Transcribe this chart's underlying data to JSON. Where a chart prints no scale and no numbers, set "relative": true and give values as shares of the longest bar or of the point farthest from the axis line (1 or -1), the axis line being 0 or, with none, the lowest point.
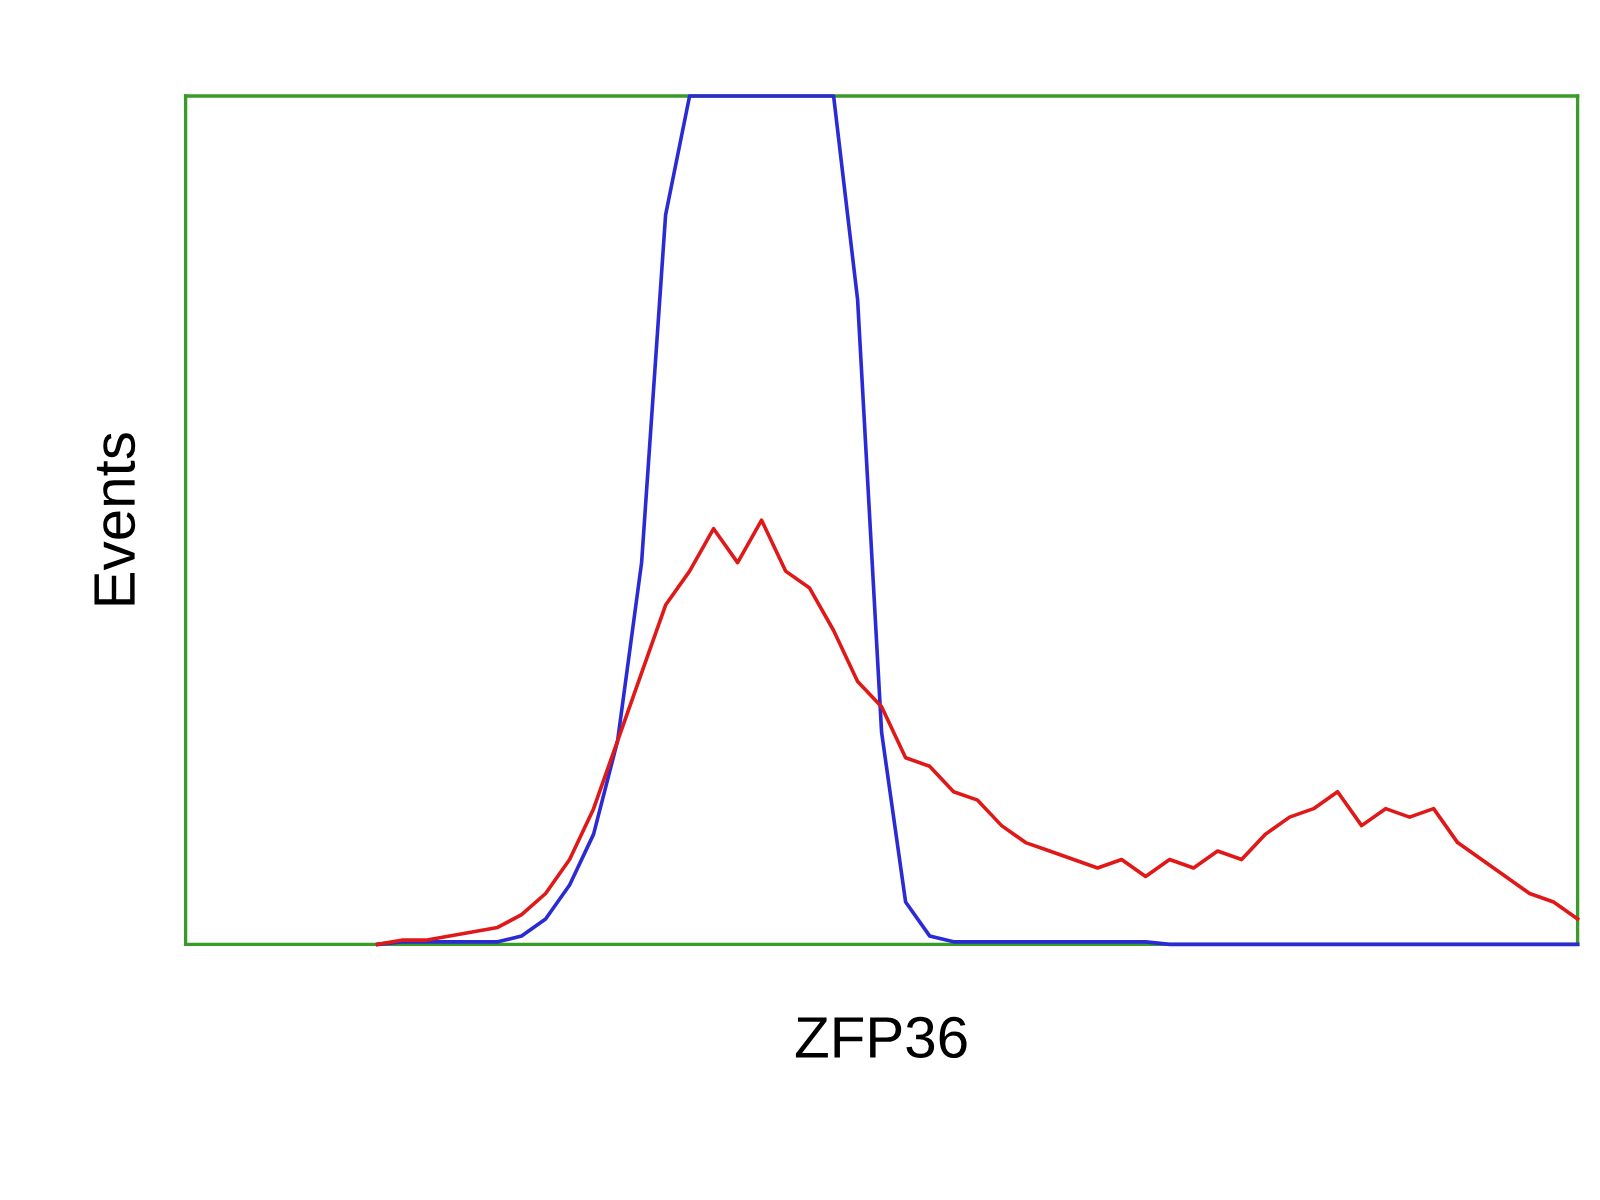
{
  "chart_data": {
    "type": "line",
    "relative": true,
    "xlabel": "ZFP36",
    "ylabel": "Events",
    "grid": false,
    "legend": false,
    "marker": "none",
    "line_style": "solid",
    "categories": [
      null,
      null,
      null,
      null,
      null,
      null,
      null,
      null,
      null,
      null,
      null,
      null,
      null,
      null,
      null,
      null,
      null,
      null,
      null,
      null,
      null,
      null,
      null,
      null,
      null,
      null,
      null,
      null,
      null,
      null,
      null,
      null,
      null,
      null,
      null,
      null,
      null,
      null,
      null,
      null,
      null,
      null,
      null,
      null,
      null,
      null,
      null,
      null,
      null,
      null,
      null,
      null,
      null,
      null,
      null,
      null,
      null,
      null,
      null
    ],
    "series": [
      {
        "color": "#2b2bd6",
        "values": [
          null,
          null,
          null,
          null,
          null,
          null,
          null,
          null,
          0,
          0.003,
          0.003,
          0.003,
          0.003,
          0.003,
          0.01,
          0.03,
          0.07,
          0.13,
          0.24,
          0.45,
          0.86,
          1,
          1,
          1,
          1,
          1,
          1,
          1,
          0.76,
          0.25,
          0.05,
          0.01,
          0.003,
          0.003,
          0.003,
          0.003,
          0.003,
          0.003,
          0.003,
          0.003,
          0.003,
          0,
          0,
          0,
          0,
          0,
          0,
          0,
          0,
          0,
          0,
          0,
          0,
          0,
          0,
          0,
          0,
          0,
          0
        ]
      },
      {
        "color": "#e01818",
        "values": [
          null,
          null,
          null,
          null,
          null,
          null,
          null,
          null,
          0,
          0.005,
          0.005,
          0.01,
          0.015,
          0.02,
          0.035,
          0.06,
          0.1,
          0.16,
          0.24,
          0.32,
          0.4,
          0.44,
          0.49,
          0.45,
          0.5,
          0.44,
          0.42,
          0.37,
          0.31,
          0.28,
          0.22,
          0.21,
          0.18,
          0.17,
          0.14,
          0.12,
          0.11,
          0.1,
          0.09,
          0.1,
          0.08,
          0.1,
          0.09,
          0.11,
          0.1,
          0.13,
          0.15,
          0.16,
          0.18,
          0.14,
          0.16,
          0.15,
          0.16,
          0.12,
          0.1,
          0.08,
          0.06,
          0.05,
          0.03
        ]
      }
    ]
  }
}
